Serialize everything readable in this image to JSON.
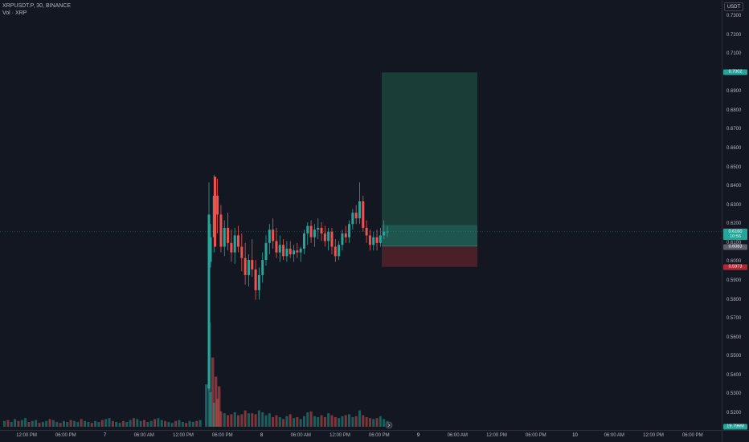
{
  "symbol": {
    "title": "XRPUSDT.P, 30, BINANCE",
    "volume_label": "Vol · XRP"
  },
  "price_axis": {
    "currency": "USDT",
    "ticks": [
      "0.7300",
      "0.7200",
      "0.7100",
      "0.7000",
      "0.6900",
      "0.6800",
      "0.6700",
      "0.6600",
      "0.6500",
      "0.6400",
      "0.6300",
      "0.6200",
      "0.6100",
      "0.6000",
      "0.5900",
      "0.5800",
      "0.5700",
      "0.5600",
      "0.5500",
      "0.5400",
      "0.5300",
      "0.5200"
    ],
    "labels": {
      "target": "0.7002",
      "last_price": "0.6160",
      "countdown": "10:56",
      "entry": "0.6083",
      "stop": "0.5973",
      "volume": "19.796M"
    }
  },
  "time_axis": {
    "ticks": [
      "12:00 PM",
      "06:00 PM",
      "7",
      "06:00 AM",
      "12:00 PM",
      "06:00 PM",
      "8",
      "06:00 AM",
      "12:00 PM",
      "06:00 PM",
      "9",
      "06:00 AM",
      "12:00 PM",
      "06:00 PM",
      "10",
      "06:00 AM",
      "12:00 PM",
      "06:00 PM"
    ]
  },
  "position_tool": {
    "type": "long",
    "entry": 0.6083,
    "target": 0.7002,
    "stop": 0.5973
  },
  "colors": {
    "background": "#131722",
    "up": "#26a69a",
    "down": "#ef5350",
    "profit_zone": "#1a3d37",
    "loss_zone": "#4a1f27",
    "last_price": "#26a69a",
    "entry_label": "#5d606b",
    "stop_label": "#b02a32"
  },
  "chart_data": {
    "type": "candlestick",
    "candles": [
      [
        0.6,
        0.62,
        0.597,
        0.613
      ],
      [
        0.613,
        0.646,
        0.605,
        0.635
      ],
      [
        0.635,
        0.644,
        0.615,
        0.625
      ],
      [
        0.625,
        0.63,
        0.605,
        0.608
      ],
      [
        0.608,
        0.622,
        0.603,
        0.618
      ],
      [
        0.618,
        0.626,
        0.606,
        0.61
      ],
      [
        0.61,
        0.617,
        0.6,
        0.605
      ],
      [
        0.605,
        0.618,
        0.599,
        0.614
      ],
      [
        0.614,
        0.619,
        0.605,
        0.608
      ],
      [
        0.608,
        0.615,
        0.595,
        0.602
      ],
      [
        0.602,
        0.61,
        0.588,
        0.593
      ],
      [
        0.593,
        0.604,
        0.587,
        0.601
      ],
      [
        0.601,
        0.612,
        0.592,
        0.596
      ],
      [
        0.596,
        0.601,
        0.58,
        0.585
      ],
      [
        0.585,
        0.597,
        0.58,
        0.593
      ],
      [
        0.593,
        0.605,
        0.589,
        0.601
      ],
      [
        0.601,
        0.614,
        0.598,
        0.61
      ],
      [
        0.61,
        0.62,
        0.604,
        0.617
      ],
      [
        0.617,
        0.623,
        0.607,
        0.611
      ],
      [
        0.611,
        0.618,
        0.602,
        0.605
      ],
      [
        0.605,
        0.614,
        0.6,
        0.609
      ],
      [
        0.609,
        0.612,
        0.601,
        0.603
      ],
      [
        0.603,
        0.611,
        0.6,
        0.607
      ],
      [
        0.607,
        0.611,
        0.602,
        0.604
      ],
      [
        0.604,
        0.609,
        0.6,
        0.606
      ],
      [
        0.606,
        0.61,
        0.602,
        0.605
      ],
      [
        0.605,
        0.608,
        0.6,
        0.607
      ],
      [
        0.607,
        0.617,
        0.604,
        0.615
      ],
      [
        0.615,
        0.621,
        0.609,
        0.619
      ],
      [
        0.619,
        0.622,
        0.61,
        0.613
      ],
      [
        0.613,
        0.62,
        0.608,
        0.617
      ],
      [
        0.617,
        0.623,
        0.612,
        0.618
      ],
      [
        0.618,
        0.621,
        0.611,
        0.615
      ],
      [
        0.615,
        0.619,
        0.608,
        0.611
      ],
      [
        0.611,
        0.618,
        0.606,
        0.616
      ],
      [
        0.616,
        0.618,
        0.604,
        0.608
      ],
      [
        0.608,
        0.612,
        0.6,
        0.603
      ],
      [
        0.603,
        0.611,
        0.601,
        0.609
      ],
      [
        0.609,
        0.617,
        0.606,
        0.615
      ],
      [
        0.615,
        0.619,
        0.61,
        0.613
      ],
      [
        0.613,
        0.622,
        0.61,
        0.62
      ],
      [
        0.62,
        0.628,
        0.617,
        0.626
      ],
      [
        0.626,
        0.63,
        0.62,
        0.623
      ],
      [
        0.623,
        0.642,
        0.62,
        0.632
      ],
      [
        0.632,
        0.635,
        0.616,
        0.618
      ],
      [
        0.618,
        0.622,
        0.61,
        0.614
      ],
      [
        0.614,
        0.617,
        0.606,
        0.609
      ],
      [
        0.609,
        0.616,
        0.606,
        0.613
      ],
      [
        0.613,
        0.617,
        0.606,
        0.61
      ],
      [
        0.61,
        0.618,
        0.608,
        0.614
      ],
      [
        0.614,
        0.622,
        0.612,
        0.616
      ],
      [
        0.616,
        0.619,
        0.613,
        0.616
      ]
    ],
    "volume": [
      3.6,
      2.5,
      2.9,
      1.6,
      1.4,
      1.2,
      1.3,
      1.5,
      1.2,
      1.3,
      1.7,
      1.4,
      1.4,
      1.3,
      1.7,
      1.5,
      1.2,
      1.4,
      1.0,
      1.2,
      1.0,
      0.8,
      1.1,
      1.3,
      0.9,
      1.0,
      0.8,
      1.1,
      1.5,
      1.6,
      1.1,
      1.0,
      1.2,
      1.0,
      1.4,
      1.2,
      1.0,
      0.9,
      1.1,
      1.2,
      1.3,
      1.0,
      1.1,
      1.7,
      1.2,
      1.0,
      0.9,
      0.8,
      0.9,
      1.1,
      0.8,
      0.6
    ],
    "early_volume": [
      0.6,
      0.7,
      0.5,
      0.8,
      0.6,
      0.7,
      0.9,
      0.5,
      0.6,
      0.7,
      0.4,
      0.5,
      0.6,
      0.8,
      0.7,
      0.5,
      0.4,
      0.6,
      0.5,
      0.7,
      0.6,
      0.5,
      0.8,
      0.6,
      0.5,
      0.4,
      0.6,
      0.5,
      0.7,
      0.8,
      0.9,
      0.6,
      0.5,
      0.4,
      0.6,
      0.5,
      0.7,
      0.9,
      0.8,
      0.6,
      0.7,
      0.5,
      0.6,
      0.8,
      0.9,
      0.7,
      0.6,
      0.5,
      0.4,
      0.6,
      0.7,
      0.5,
      0.4,
      0.6,
      0.5,
      0.6,
      0.7
    ],
    "price_range": [
      0.515,
      0.735
    ]
  }
}
